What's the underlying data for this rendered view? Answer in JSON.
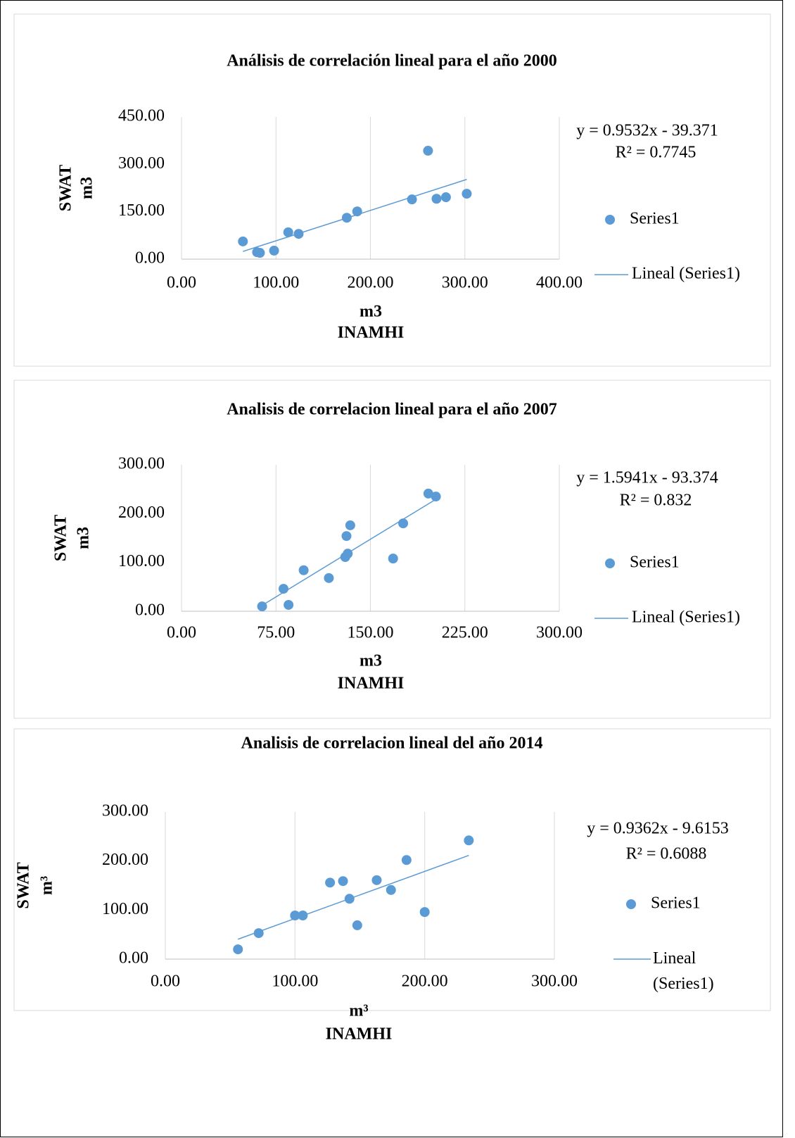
{
  "chart_data": [
    {
      "type": "scatter",
      "title": "Análisis de correlación lineal para el año 2000",
      "xlabel": [
        "m3",
        "INAMHI"
      ],
      "ylabel": [
        "SWAT",
        "m3"
      ],
      "xlim": [
        0,
        400
      ],
      "ylim": [
        0,
        450
      ],
      "xticks": [
        {
          "value": 0,
          "label": "0.00"
        },
        {
          "value": 100,
          "label": "100.00"
        },
        {
          "value": 200,
          "label": "200.00"
        },
        {
          "value": 300,
          "label": "300.00"
        },
        {
          "value": 400,
          "label": "400.00"
        }
      ],
      "yticks": [
        {
          "value": 0,
          "label": "0.00"
        },
        {
          "value": 150,
          "label": "150.00"
        },
        {
          "value": 300,
          "label": "300.00"
        },
        {
          "value": 450,
          "label": "450.00"
        }
      ],
      "grid": "x",
      "series": [
        {
          "name": "Series1",
          "color": "#5b9bd5",
          "x": [
            65,
            80,
            83,
            98,
            113,
            124,
            175,
            186,
            244,
            261,
            270,
            280,
            302
          ],
          "values": [
            56,
            22,
            20,
            27,
            85,
            80,
            131,
            151,
            189,
            343,
            191,
            196,
            207
          ]
        }
      ],
      "trendline": {
        "name": "Lineal (Series1)",
        "equation": "y = 0.9532x - 39.371",
        "r2": "R² = 0.7745"
      }
    },
    {
      "type": "scatter",
      "title": "Analisis de correlacion lineal para el año 2007",
      "xlabel": [
        "m3",
        "INAMHI"
      ],
      "ylabel": [
        "SWAT",
        "m3"
      ],
      "xlim": [
        0,
        300
      ],
      "ylim": [
        0,
        300
      ],
      "xticks": [
        {
          "value": 0,
          "label": "0.00"
        },
        {
          "value": 75,
          "label": "75.00"
        },
        {
          "value": 150,
          "label": "150.00"
        },
        {
          "value": 225,
          "label": "225.00"
        },
        {
          "value": 300,
          "label": "300.00"
        }
      ],
      "yticks": [
        {
          "value": 0,
          "label": "0.00"
        },
        {
          "value": 100,
          "label": "100.00"
        },
        {
          "value": 200,
          "label": "200.00"
        },
        {
          "value": 300,
          "label": "300.00"
        }
      ],
      "grid": "x",
      "series": [
        {
          "name": "Series1",
          "color": "#5b9bd5",
          "x": [
            64,
            81,
            85,
            97,
            117,
            130,
            132,
            131,
            134,
            168,
            176,
            196,
            202
          ],
          "values": [
            10,
            46,
            13,
            84,
            68,
            111,
            118,
            154,
            176,
            108,
            180,
            241,
            235
          ]
        }
      ],
      "trendline": {
        "name": "Lineal (Series1)",
        "equation": "y = 1.5941x - 93.374",
        "r2": "R² = 0.832"
      }
    },
    {
      "type": "scatter",
      "title": "Analisis de correlacion lineal del año 2014",
      "xlabel": [
        "m³",
        "INAMHI"
      ],
      "ylabel": [
        "SWAT",
        "m³"
      ],
      "xlim": [
        0,
        300
      ],
      "ylim": [
        0,
        300
      ],
      "xticks": [
        {
          "value": 0,
          "label": "0.00"
        },
        {
          "value": 100,
          "label": "100.00"
        },
        {
          "value": 200,
          "label": "200.00"
        },
        {
          "value": 300,
          "label": "300.00"
        }
      ],
      "yticks": [
        {
          "value": 0,
          "label": "0.00"
        },
        {
          "value": 100,
          "label": "100.00"
        },
        {
          "value": 200,
          "label": "200.00"
        },
        {
          "value": 300,
          "label": "300.00"
        }
      ],
      "grid": "x",
      "series": [
        {
          "name": "Series1",
          "color": "#5b9bd5",
          "x": [
            56,
            72,
            100,
            106,
            127,
            137,
            142,
            148,
            163,
            174,
            186,
            200,
            234
          ],
          "values": [
            20,
            53,
            89,
            89,
            156,
            159,
            123,
            69,
            161,
            141,
            202,
            96,
            242
          ]
        }
      ],
      "trendline": {
        "name": "Lineal (Series1)",
        "equation": "y = 0.9362x - 9.6153",
        "r2": "R² = 0.6088"
      }
    }
  ]
}
